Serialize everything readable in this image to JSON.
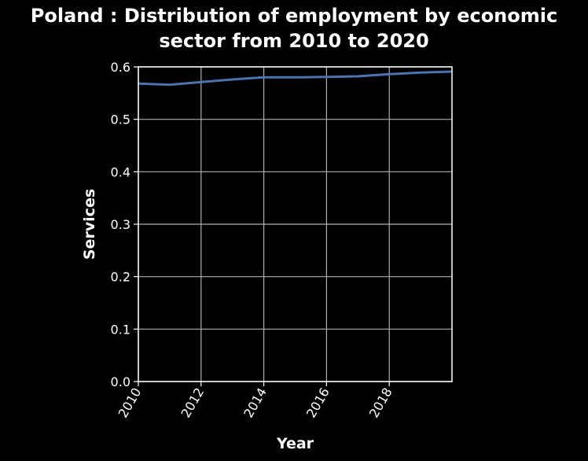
{
  "chart_data": {
    "type": "line",
    "title_lines": [
      "Poland : Distribution of employment by economic",
      "sector from 2010 to 2020"
    ],
    "xlabel": "Year",
    "ylabel": "Services",
    "xlim": [
      2010,
      2020
    ],
    "ylim": [
      0,
      0.6
    ],
    "x_ticks": [
      2010,
      2012,
      2014,
      2016,
      2018
    ],
    "y_ticks": [
      0.0,
      0.1,
      0.2,
      0.3,
      0.4,
      0.5,
      0.6
    ],
    "grid": true,
    "series": [
      {
        "color": "#4c72b0",
        "x": [
          2010,
          2011,
          2012,
          2013,
          2014,
          2015,
          2016,
          2017,
          2018,
          2019,
          2020
        ],
        "y": [
          0.568,
          0.566,
          0.571,
          0.576,
          0.58,
          0.58,
          0.581,
          0.582,
          0.586,
          0.589,
          0.591
        ]
      }
    ]
  },
  "colors": {
    "background": "#000000",
    "grid": "#b0b0b0",
    "text": "#ffffff"
  }
}
